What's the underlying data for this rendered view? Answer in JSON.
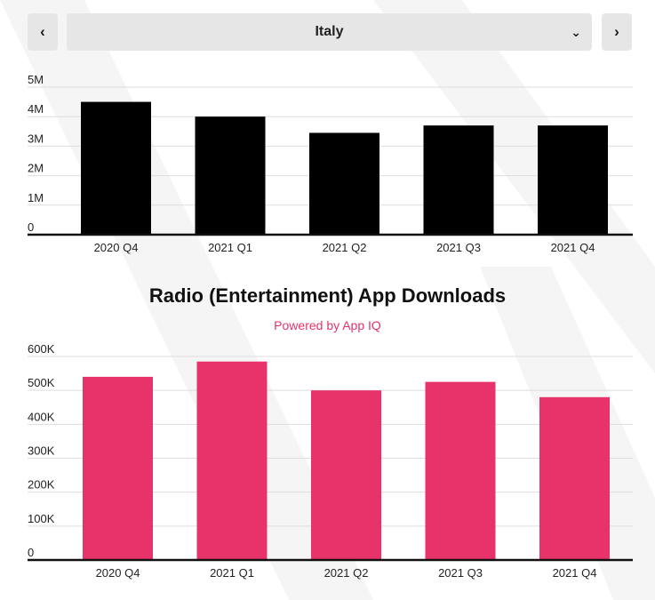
{
  "nav": {
    "prev_icon": "chevron-left-icon",
    "next_icon": "chevron-right-icon",
    "prev_glyph": "‹",
    "next_glyph": "›",
    "dropdown_icon": "chevron-down-icon",
    "dropdown_glyph": "⌄",
    "selected_country": "Italy"
  },
  "colors": {
    "top_bars": "#000000",
    "bottom_bars": "#e8336a",
    "subtitle": "#e8336a",
    "grid": "#dddddd",
    "nav_bg": "#e6e6e6"
  },
  "chart_data": [
    {
      "type": "bar",
      "title": "",
      "categories": [
        "2020 Q4",
        "2021 Q1",
        "2021 Q2",
        "2021 Q3",
        "2021 Q4"
      ],
      "values": [
        4500000,
        4000000,
        3450000,
        3700000,
        3700000
      ],
      "yticks": [
        "0",
        "1M",
        "2M",
        "3M",
        "4M",
        "5M"
      ],
      "ylim": [
        0,
        5000000
      ],
      "grid": true,
      "color": "#000000"
    },
    {
      "type": "bar",
      "title": "Radio (Entertainment) App Downloads",
      "subtitle": "Powered by App IQ",
      "categories": [
        "2020 Q4",
        "2021 Q1",
        "2021 Q2",
        "2021 Q3",
        "2021 Q4"
      ],
      "values": [
        540000,
        585000,
        500000,
        525000,
        480000
      ],
      "yticks": [
        "0",
        "100K",
        "200K",
        "300K",
        "400K",
        "500K",
        "600K"
      ],
      "ylim": [
        0,
        600000
      ],
      "grid": true,
      "color": "#e8336a"
    }
  ]
}
